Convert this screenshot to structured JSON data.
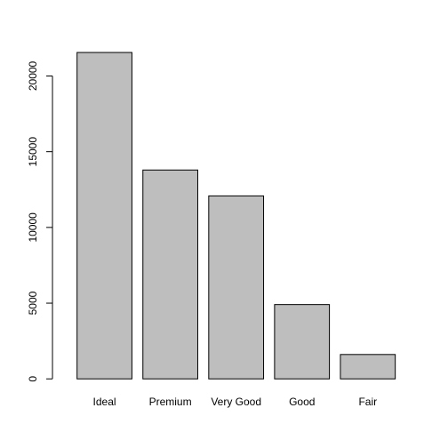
{
  "chart_data": {
    "type": "bar",
    "categories": [
      "Ideal",
      "Premium",
      "Very Good",
      "Good",
      "Fair"
    ],
    "values": [
      21551,
      13791,
      12082,
      4906,
      1610
    ],
    "yticks": [
      "0",
      "5000",
      "10000",
      "15000",
      "20000"
    ],
    "ylim": [
      0,
      21551
    ],
    "title": "",
    "xlabel": "",
    "ylabel": "",
    "grid": false,
    "bar_color": "#bebebe",
    "edge_color": "#000000"
  }
}
